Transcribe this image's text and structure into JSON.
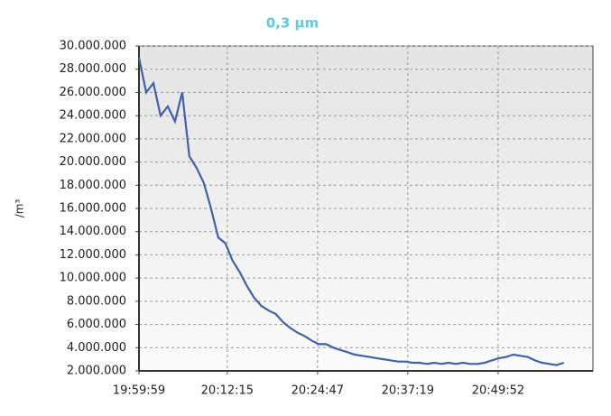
{
  "chart_data": {
    "type": "line",
    "title": "0,3 µm",
    "title_color": "#5ecbdc",
    "y_label": "/m³",
    "x": [
      71999,
      72059,
      72119,
      72179,
      72239,
      72299,
      72359,
      72419,
      72479,
      72539,
      72599,
      72659,
      72719,
      72779,
      72839,
      72899,
      72959,
      73019,
      73079,
      73139,
      73199,
      73259,
      73319,
      73379,
      73439,
      73499,
      73559,
      73619,
      73679,
      73739,
      73799,
      73859,
      73919,
      73979,
      74039,
      74099,
      74159,
      74219,
      74279,
      74339,
      74399,
      74459,
      74519,
      74579,
      74639,
      74699,
      74759,
      74819,
      74879,
      74939,
      74999,
      75059,
      75119,
      75179,
      75239,
      75299,
      75359,
      75419,
      75479,
      75539
    ],
    "series": [
      {
        "color": "#3f62a8",
        "values": [
          29000000,
          26000000,
          26800000,
          24000000,
          24800000,
          23500000,
          26000000,
          20500000,
          19500000,
          18200000,
          16000000,
          13500000,
          13000000,
          11500000,
          10500000,
          9300000,
          8300000,
          7600000,
          7200000,
          6900000,
          6200000,
          5700000,
          5300000,
          5000000,
          4600000,
          4300000,
          4300000,
          4000000,
          3800000,
          3600000,
          3400000,
          3300000,
          3200000,
          3100000,
          3000000,
          2900000,
          2800000,
          2800000,
          2700000,
          2700000,
          2600000,
          2700000,
          2600000,
          2700000,
          2600000,
          2700000,
          2600000,
          2600000,
          2700000,
          2900000,
          3100000,
          3200000,
          3400000,
          3300000,
          3200000,
          2900000,
          2700000,
          2600000,
          2500000,
          2700000
        ]
      }
    ],
    "xlim": [
      71999,
      75782
    ],
    "xticks": [
      {
        "value": 71999,
        "label": "19:59:59"
      },
      {
        "value": 72735,
        "label": "20:12:15"
      },
      {
        "value": 73487,
        "label": "20:24:47"
      },
      {
        "value": 74239,
        "label": "20:37:19"
      },
      {
        "value": 74992,
        "label": "20:49:52"
      }
    ],
    "ylim": [
      2000000,
      30000000
    ],
    "yticks": [
      {
        "value": 2000000,
        "label": "2.000.000"
      },
      {
        "value": 4000000,
        "label": "4.000.000"
      },
      {
        "value": 6000000,
        "label": "6.000.000"
      },
      {
        "value": 8000000,
        "label": "8.000.000"
      },
      {
        "value": 10000000,
        "label": "10.000.000"
      },
      {
        "value": 12000000,
        "label": "12.000.000"
      },
      {
        "value": 14000000,
        "label": "14.000.000"
      },
      {
        "value": 16000000,
        "label": "16.000.000"
      },
      {
        "value": 18000000,
        "label": "18.000.000"
      },
      {
        "value": 20000000,
        "label": "20.000.000"
      },
      {
        "value": 22000000,
        "label": "22.000.000"
      },
      {
        "value": 24000000,
        "label": "24.000.000"
      },
      {
        "value": 26000000,
        "label": "26.000.000"
      },
      {
        "value": 28000000,
        "label": "28.000.000"
      },
      {
        "value": 30000000,
        "label": "30.000.000"
      }
    ],
    "grid": true
  }
}
